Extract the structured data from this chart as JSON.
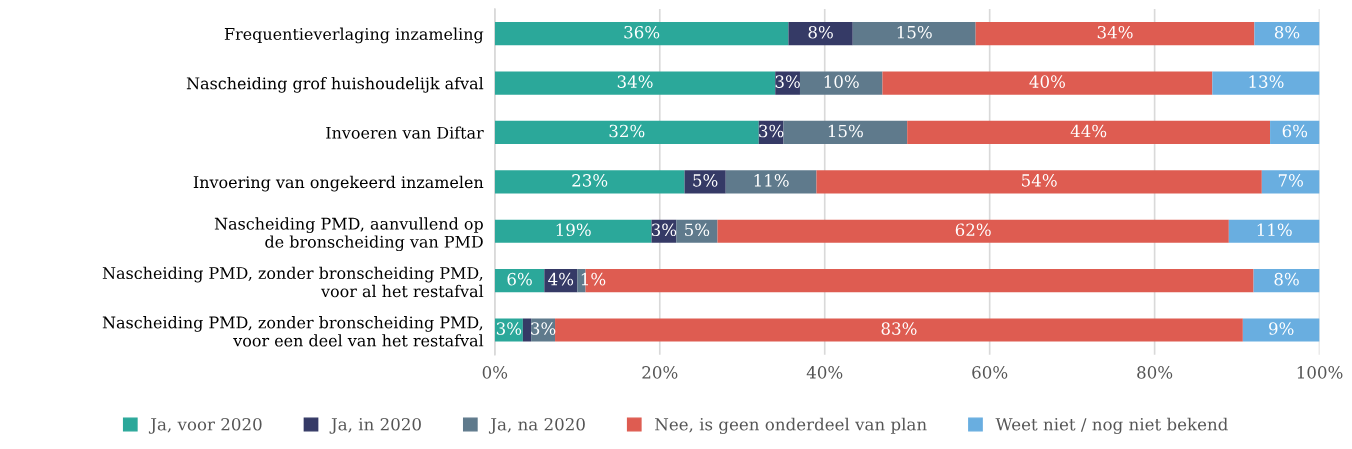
{
  "chart_data": {
    "type": "bar",
    "orientation": "horizontal",
    "stacked": true,
    "categories": [
      "Frequentieverlaging inzameling",
      "Nascheiding grof huishoudelijk afval",
      "Invoeren van Diftar",
      "Invoering van ongekeerd inzamelen",
      "Nascheiding PMD, aanvullend op\nde bronscheiding van PMD",
      "Nascheiding PMD, zonder bronscheiding PMD,\nvoor al het restafval",
      "Nascheiding PMD, zonder bronscheiding PMD,\nvoor een deel van het restafval"
    ],
    "series": [
      {
        "name": "Ja, voor 2020",
        "color": "#2ba89a",
        "values": [
          35.6,
          34,
          32,
          23,
          19,
          6,
          3.4
        ],
        "value_labels": [
          "36%",
          "34%",
          "32%",
          "23%",
          "19%",
          "6%",
          "3%"
        ]
      },
      {
        "name": "Ja, in 2020",
        "color": "#353a66",
        "values": [
          7.8,
          3,
          3,
          5,
          3,
          4,
          1
        ],
        "value_labels": [
          "8%",
          "3%",
          "3%",
          "5%",
          "3%",
          "4%",
          null
        ]
      },
      {
        "name": "Ja, na 2020",
        "color": "#5f7a8c",
        "values": [
          14.9,
          10,
          15,
          11,
          5,
          1,
          2.9
        ],
        "value_labels": [
          "15%",
          "10%",
          "15%",
          "11%",
          "5%",
          "1%",
          "3%"
        ]
      },
      {
        "name": "Nee, is geen onderdeel van plan",
        "color": "#de5c51",
        "values": [
          33.8,
          40,
          44,
          54,
          62,
          81,
          83.4
        ],
        "value_labels": [
          "34%",
          "40%",
          "44%",
          "54%",
          "62%",
          null,
          "83%"
        ]
      },
      {
        "name": "Weet niet / nog niet bekend",
        "color": "#69aee0",
        "values": [
          7.9,
          13,
          6,
          7,
          11,
          8,
          9.3
        ],
        "value_labels": [
          "8%",
          "13%",
          "6%",
          "7%",
          "11%",
          "8%",
          "9%"
        ]
      }
    ],
    "xlim": [
      0,
      100
    ],
    "xticks": [
      {
        "value": 0,
        "label": "0%"
      },
      {
        "value": 20,
        "label": "20%"
      },
      {
        "value": 40,
        "label": "40%"
      },
      {
        "value": 60,
        "label": "60%"
      },
      {
        "value": 80,
        "label": "80%"
      },
      {
        "value": 100,
        "label": "100%"
      }
    ],
    "grid": "x",
    "legend": "bottom"
  }
}
